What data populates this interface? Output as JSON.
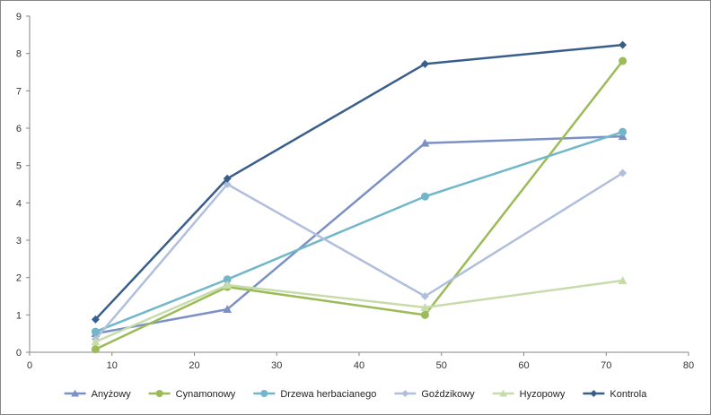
{
  "chart_data": {
    "type": "line",
    "title": "",
    "xlabel": "",
    "ylabel": "",
    "xlim": [
      0,
      80
    ],
    "ylim": [
      0,
      9
    ],
    "x_ticks": [
      "0",
      "10",
      "20",
      "30",
      "40",
      "50",
      "60",
      "70",
      "80"
    ],
    "y_ticks": [
      "0",
      "1",
      "2",
      "3",
      "4",
      "5",
      "6",
      "7",
      "8",
      "9"
    ],
    "grid": false,
    "legend_position": "bottom",
    "x": [
      8,
      24,
      48,
      72
    ],
    "series": [
      {
        "name": "Anyżowy",
        "values": [
          0.5,
          1.15,
          5.6,
          5.78
        ],
        "color": "#7b90c4",
        "marker": "triangle"
      },
      {
        "name": "Cynamonowy",
        "values": [
          0.08,
          1.75,
          1.0,
          7.8
        ],
        "color": "#9bbb59",
        "marker": "circle"
      },
      {
        "name": "Drzewa herbacianego",
        "values": [
          0.55,
          1.95,
          4.17,
          5.9
        ],
        "color": "#72b7c9",
        "marker": "circle"
      },
      {
        "name": "Goździkowy",
        "values": [
          0.35,
          4.5,
          1.5,
          4.8
        ],
        "color": "#b0bfdb",
        "marker": "diamond"
      },
      {
        "name": "Hyzopowy",
        "values": [
          0.28,
          1.8,
          1.2,
          1.92
        ],
        "color": "#c7dcaa",
        "marker": "triangle"
      },
      {
        "name": "Kontrola",
        "values": [
          0.88,
          4.65,
          7.72,
          8.23
        ],
        "color": "#3a5e8c",
        "marker": "diamond"
      }
    ]
  }
}
